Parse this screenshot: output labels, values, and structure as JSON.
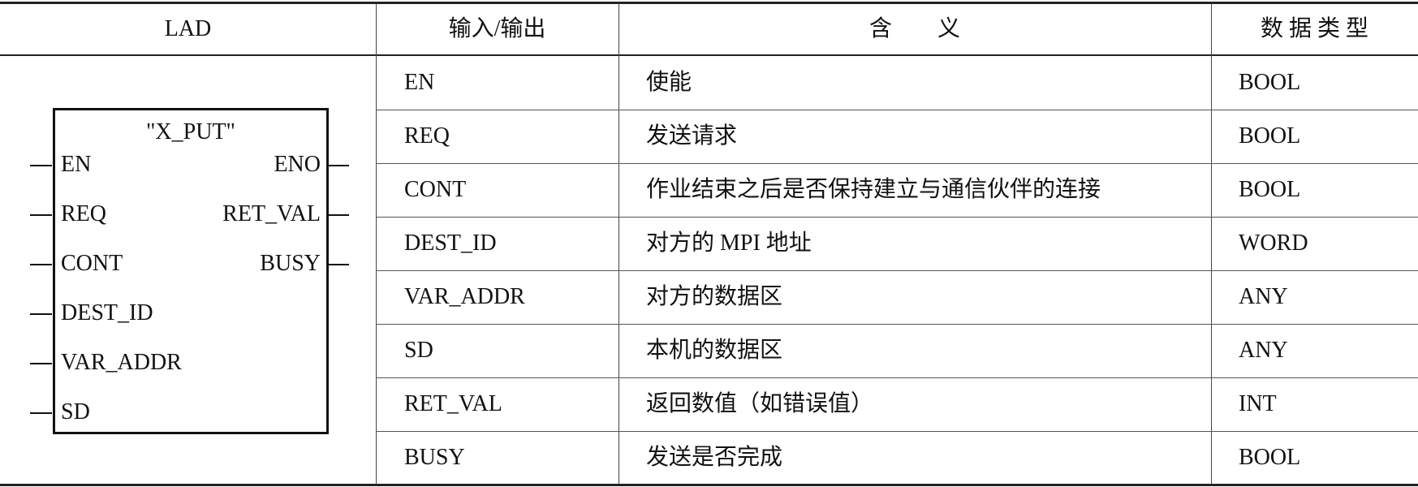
{
  "headers": {
    "lad": "LAD",
    "io": "输入/输出",
    "meaning": "含　　义",
    "type": "数 据 类 型"
  },
  "block": {
    "name": "\"X_PUT\"",
    "inputs": [
      "EN",
      "REQ",
      "CONT",
      "DEST_ID",
      "VAR_ADDR",
      "SD"
    ],
    "outputs": [
      "ENO",
      "RET_VAL",
      "BUSY"
    ]
  },
  "rows": [
    {
      "io": "EN",
      "meaning": "使能",
      "type": "BOOL"
    },
    {
      "io": "REQ",
      "meaning": "发送请求",
      "type": "BOOL"
    },
    {
      "io": "CONT",
      "meaning": "作业结束之后是否保持建立与通信伙伴的连接",
      "type": "BOOL"
    },
    {
      "io": "DEST_ID",
      "meaning": "对方的 MPI 地址",
      "type": "WORD"
    },
    {
      "io": "VAR_ADDR",
      "meaning": "对方的数据区",
      "type": "ANY"
    },
    {
      "io": "SD",
      "meaning": "本机的数据区",
      "type": "ANY"
    },
    {
      "io": "RET_VAL",
      "meaning": "返回数值（如错误值）",
      "type": "INT"
    },
    {
      "io": "BUSY",
      "meaning": "发送是否完成",
      "type": "BOOL"
    }
  ]
}
